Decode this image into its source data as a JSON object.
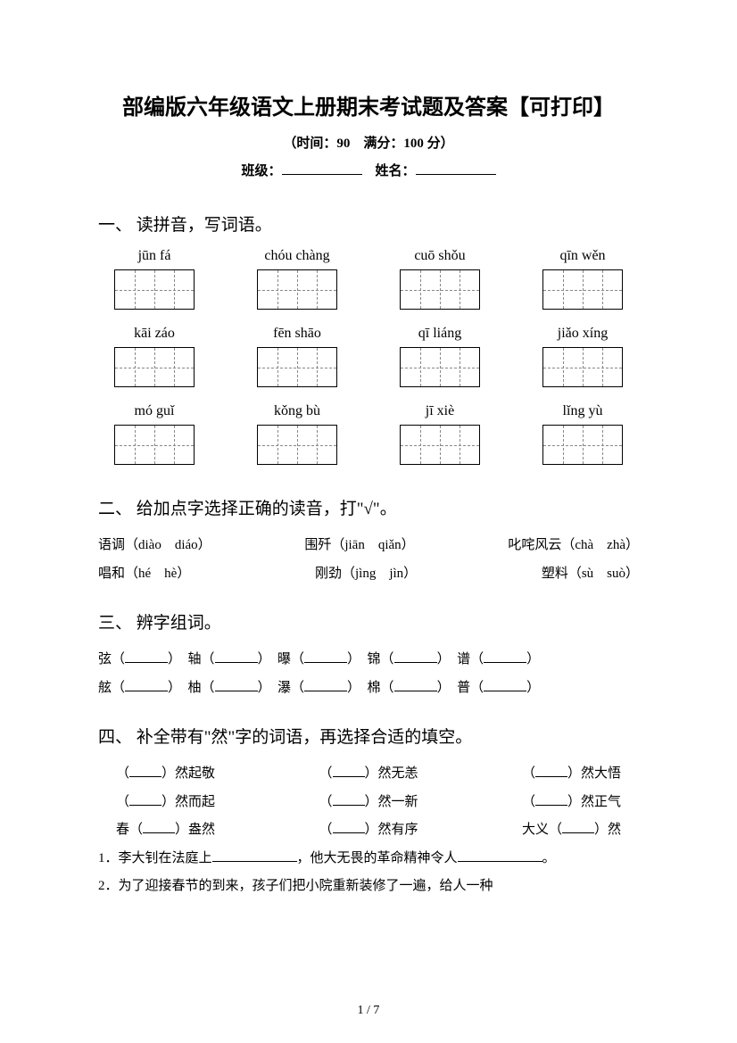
{
  "title": "部编版六年级语文上册期末考试题及答案【可打印】",
  "subtitle": "（时间：90　满分：100 分）",
  "nameline": {
    "class_label": "班级：",
    "name_label": "姓名："
  },
  "s1": {
    "head": "一、 读拼音，写词语。",
    "items": [
      "jūn fá",
      "chóu chàng",
      "cuō shǒu",
      "qīn wěn",
      "kāi záo",
      "fēn shāo",
      "qī liáng",
      "jiǎo xíng",
      "mó guǐ",
      "kǒng bù",
      "jī xiè",
      "lǐng yù"
    ]
  },
  "s2": {
    "head": "二、 给加点字选择正确的读音，打\"√\"。",
    "r1a": "语调（diào　diáo）",
    "r1b": "围歼（jiān　qiǎn）",
    "r1c": "叱咤风云（chà　zhà）",
    "r2a": "唱和（hé　hè）",
    "r2b": "刚劲（jìng　jìn）",
    "r2c": "塑料（sù　suò）"
  },
  "s3": {
    "head": "三、 辨字组词。",
    "r1": [
      "弦（",
      "）　轴（",
      "）　曝（",
      "）　锦（",
      "）　谱（",
      "）"
    ],
    "r2": [
      "舷（",
      "）　柚（",
      "）　瀑（",
      "）　棉（",
      "）　普（",
      "）"
    ]
  },
  "s4": {
    "head": "四、 补全带有\"然\"字的词语，再选择合适的填空。",
    "g": [
      [
        "（",
        "）然起敬",
        "（",
        "）然无恙",
        "（",
        "）然大悟"
      ],
      [
        "（",
        "）然而起",
        "（",
        "）然一新",
        "（",
        "）然正气"
      ],
      [
        "春（",
        "）盎然",
        "（",
        "）然有序",
        "大义（",
        "）然"
      ]
    ],
    "q1a": "1．李大钊在法庭上",
    "q1b": "，他大无畏的革命精神令人",
    "q1c": "。",
    "q2": "2．为了迎接春节的到来，孩子们把小院重新装修了一遍，给人一种"
  },
  "footer": "1 / 7"
}
